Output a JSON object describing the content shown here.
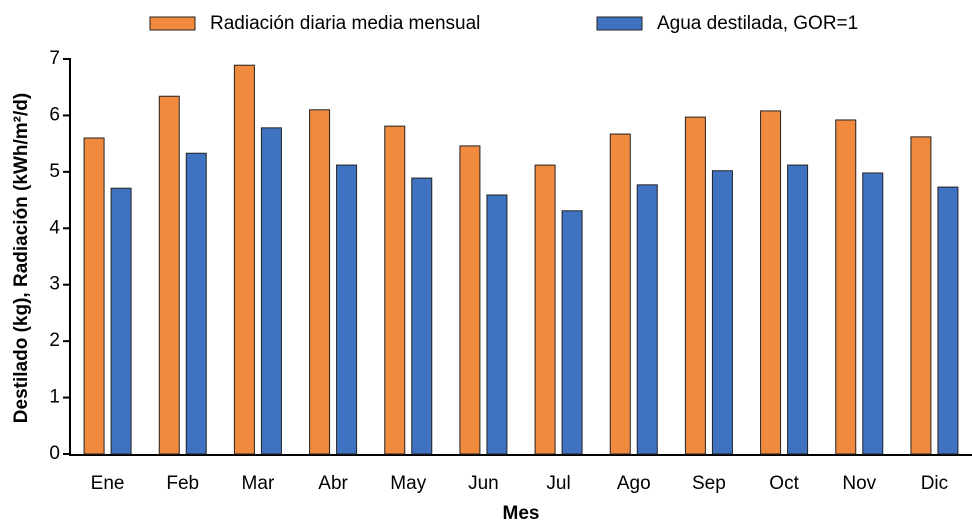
{
  "chart_data": {
    "type": "bar",
    "x_label": "Mes",
    "y_label": "Destilado (kg), Radiación (kWh/m²/d)",
    "categories": [
      "Ene",
      "Feb",
      "Mar",
      "Abr",
      "May",
      "Jun",
      "Jul",
      "Ago",
      "Sep",
      "Oct",
      "Nov",
      "Dic"
    ],
    "series": [
      {
        "name": "Radiación diaria media mensual",
        "color": "#f08a3e",
        "values": [
          5.6,
          6.34,
          6.89,
          6.1,
          5.81,
          5.46,
          5.12,
          5.67,
          5.97,
          6.08,
          5.92,
          5.62
        ]
      },
      {
        "name": "Agua destilada, GOR=1",
        "color": "#3f73c2",
        "values": [
          4.71,
          5.33,
          5.78,
          5.12,
          4.89,
          4.59,
          4.31,
          4.77,
          5.02,
          5.12,
          4.98,
          4.73
        ]
      }
    ],
    "ylim": [
      0,
      7
    ],
    "yticks": [
      0,
      1,
      2,
      3,
      4,
      5,
      6,
      7
    ],
    "legend": "top",
    "grid": false
  }
}
